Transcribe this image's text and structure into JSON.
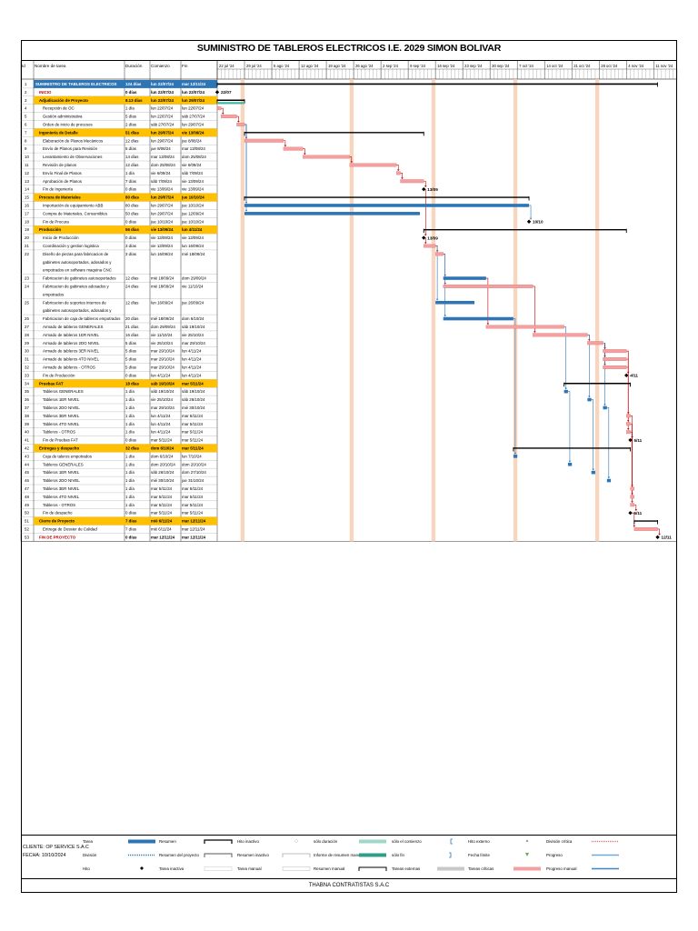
{
  "title": "SUMINISTRO DE TABLEROS ELECTRICOS I.E. 2029 SIMON BOLIVAR",
  "footer": "THABNA CONTRATISTAS S.A.C",
  "client": {
    "name": "CLIENTE: OP SERVICE S.A.C",
    "date": "FECHA: 10/10/2024"
  },
  "columns": [
    "Id",
    "Nombre de tarea",
    "Duración",
    "Comienzo",
    "Fin"
  ],
  "colors": {
    "summary_fill": "#ffc000",
    "project_fill": "#2e75b6",
    "manual_bar": "#f4a0a0",
    "manual_edge": "#e06666",
    "auto_bar": "#2e75b6",
    "link": "#c00000",
    "link_blue": "#2e75b6",
    "milestone": "#000000",
    "weekend_stripe": "#f8cbad"
  },
  "timescale": [
    "22 jul '24",
    "29 jul '24",
    "5 ago '24",
    "12 ago '24",
    "19 ago '24",
    "26 ago '24",
    "2 sep '24",
    "9 sep '24",
    "16 sep '24",
    "23 sep '24",
    "30 sep '24",
    "7 oct '24",
    "14 oct '24",
    "21 oct '24",
    "28 oct '24",
    "4 nov '24",
    "11 nov '24"
  ],
  "chart_data": {
    "type": "table",
    "title": "SUMINISTRO DE TABLEROS ELECTRICOS I.E. 2029 SIMON BOLIVAR",
    "x_range": [
      "2024-07-22",
      "2024-11-17"
    ],
    "tasks": [
      {
        "id": "1",
        "name": "SUMINISTRO DE TABLEROS ELECTRICOS",
        "dur": "124 días",
        "start": "lun 22/07/24",
        "end": "mar 12/11/24",
        "s": "2024-07-22",
        "e": "2024-11-12",
        "kind": "project",
        "indent": 0
      },
      {
        "id": "2",
        "name": "INICIO",
        "dur": "0 días",
        "start": "lun 22/07/24",
        "end": "lun 22/07/24",
        "s": "2024-07-22",
        "e": "2024-07-22",
        "kind": "milestone",
        "indent": 1,
        "label": "22/07",
        "red": true
      },
      {
        "id": "3",
        "name": "Adjudicación de Proyecto",
        "dur": "8.13 días",
        "start": "lun 22/07/24",
        "end": "lun 29/07/24",
        "s": "2024-07-22",
        "e": "2024-07-29",
        "kind": "summary",
        "indent": 1
      },
      {
        "id": "4",
        "name": "Recepción de OC",
        "dur": "1 día",
        "start": "lun 22/07/24",
        "end": "lun 22/07/24",
        "s": "2024-07-22",
        "e": "2024-07-23",
        "kind": "manual",
        "indent": 2
      },
      {
        "id": "5",
        "name": "Gestión administrativa",
        "dur": "5 días",
        "start": "lun 22/07/24",
        "end": "sáb 27/07/24",
        "s": "2024-07-23",
        "e": "2024-07-27",
        "kind": "manual",
        "indent": 2
      },
      {
        "id": "6",
        "name": "Orden de inicio de procesos",
        "dur": "2 días",
        "start": "sáb 27/07/24",
        "end": "lun 29/07/24",
        "s": "2024-07-27",
        "e": "2024-07-29",
        "kind": "manual",
        "indent": 2
      },
      {
        "id": "7",
        "name": "Ingeniería de Detalle",
        "dur": "51 días",
        "start": "lun 29/07/24",
        "end": "vie 13/09/24",
        "s": "2024-07-29",
        "e": "2024-09-13",
        "kind": "summary",
        "indent": 1
      },
      {
        "id": "8",
        "name": "Elaboración de Planos Mecánicos",
        "dur": "12 días",
        "start": "lun 29/07/24",
        "end": "jue 8/08/24",
        "s": "2024-07-29",
        "e": "2024-08-08",
        "kind": "manual",
        "indent": 2
      },
      {
        "id": "9",
        "name": "Envío de Planos para Revisión",
        "dur": "5 días",
        "start": "jue 8/08/24",
        "end": "mar 13/08/24",
        "s": "2024-08-08",
        "e": "2024-08-13",
        "kind": "manual",
        "indent": 2
      },
      {
        "id": "10",
        "name": "Levantamiento de Observaciones",
        "dur": "14 días",
        "start": "mar 13/08/24",
        "end": "dom 25/08/24",
        "s": "2024-08-13",
        "e": "2024-08-25",
        "kind": "manual",
        "indent": 2
      },
      {
        "id": "11",
        "name": "Revisión de planos",
        "dur": "12 días",
        "start": "dom 25/08/24",
        "end": "vie 6/09/24",
        "s": "2024-08-25",
        "e": "2024-09-06",
        "kind": "manual",
        "indent": 2
      },
      {
        "id": "12",
        "name": "Envío Final de Planos",
        "dur": "1 día",
        "start": "vie 6/09/24",
        "end": "sáb 7/09/24",
        "s": "2024-09-06",
        "e": "2024-09-07",
        "kind": "manual",
        "indent": 2
      },
      {
        "id": "13",
        "name": "Aprobación de Planos",
        "dur": "7 días",
        "start": "sáb 7/09/24",
        "end": "vie 13/09/24",
        "s": "2024-09-07",
        "e": "2024-09-13",
        "kind": "manual",
        "indent": 2
      },
      {
        "id": "14",
        "name": "Fin de Ingeniería",
        "dur": "0 días",
        "start": "vie 13/09/24",
        "end": "vie 13/09/24",
        "s": "2024-09-13",
        "e": "2024-09-13",
        "kind": "milestone",
        "indent": 2,
        "label": "13/09"
      },
      {
        "id": "15",
        "name": "Procura de Materiales",
        "dur": "80 días",
        "start": "lun 29/07/24",
        "end": "jue 10/10/24",
        "s": "2024-07-29",
        "e": "2024-10-10",
        "kind": "summary",
        "indent": 1
      },
      {
        "id": "16",
        "name": "Importación de equipamiento ABB",
        "dur": "80 días",
        "start": "lun 29/07/24",
        "end": "jue 10/10/24",
        "s": "2024-07-29",
        "e": "2024-10-10",
        "kind": "auto",
        "indent": 2
      },
      {
        "id": "17",
        "name": "Compra de Materiales, Consumibles",
        "dur": "50 días",
        "start": "lun 29/07/24",
        "end": "jue 12/09/24",
        "s": "2024-07-29",
        "e": "2024-09-12",
        "kind": "auto",
        "indent": 2
      },
      {
        "id": "18",
        "name": "Fin de Procura",
        "dur": "0 días",
        "start": "jue 10/10/24",
        "end": "jue 10/10/24",
        "s": "2024-10-10",
        "e": "2024-10-10",
        "kind": "milestone",
        "indent": 2,
        "label": "10/10"
      },
      {
        "id": "19",
        "name": "Producción",
        "dur": "56 días",
        "start": "vie 13/09/24",
        "end": "lun 4/11/24",
        "s": "2024-09-13",
        "e": "2024-11-04",
        "kind": "summary",
        "indent": 1
      },
      {
        "id": "20",
        "name": "Inicio de Producción",
        "dur": "0 días",
        "start": "vie 13/09/24",
        "end": "vie 13/09/24",
        "s": "2024-09-13",
        "e": "2024-09-13",
        "kind": "milestone",
        "indent": 2,
        "label": "13/09"
      },
      {
        "id": "21",
        "name": "Coordinación y gestion logistica",
        "dur": "3 días",
        "start": "vie 13/09/24",
        "end": "lun 16/09/24",
        "s": "2024-09-13",
        "e": "2024-09-16",
        "kind": "manual",
        "indent": 2
      },
      {
        "id": "22",
        "name": "Diseño de piezas para fabricacion de gabinetes autosoportados, adosados y empotrados en software maquina CNC",
        "dur": "3 días",
        "start": "lun 16/09/24",
        "end": "mié 18/09/24",
        "s": "2024-09-16",
        "e": "2024-09-18",
        "kind": "manual",
        "indent": 2,
        "lines": 3
      },
      {
        "id": "23",
        "name": "Fabricacion de gabinetes autosoportados",
        "dur": "12 días",
        "start": "mié 18/09/24",
        "end": "dom 29/09/24",
        "s": "2024-09-18",
        "e": "2024-09-29",
        "kind": "auto",
        "indent": 2
      },
      {
        "id": "24",
        "name": "Fabricacion de gabinetes adosados y empotrados",
        "dur": "24 días",
        "start": "mié 18/09/24",
        "end": "vie 11/10/24",
        "s": "2024-09-18",
        "e": "2024-10-11",
        "kind": "manual",
        "indent": 2,
        "lines": 2
      },
      {
        "id": "25",
        "name": "Fabricacion de soportes internos de gabinetes autosoportados, adosados y",
        "dur": "12 días",
        "start": "lun 16/09/24",
        "end": "jue 26/09/24",
        "s": "2024-09-16",
        "e": "2024-09-26",
        "kind": "auto",
        "indent": 2,
        "lines": 2
      },
      {
        "id": "26",
        "name": "Fabricacion de caja de tableros empotrados",
        "dur": "20 días",
        "start": "mié 18/09/24",
        "end": "dom 6/10/24",
        "s": "2024-09-18",
        "e": "2024-10-06",
        "kind": "auto",
        "indent": 2
      },
      {
        "id": "27",
        "name": "Armado de tableros GENERALES",
        "dur": "21 días",
        "start": "dom 29/09/24",
        "end": "sáb 19/10/24",
        "s": "2024-09-29",
        "e": "2024-10-19",
        "kind": "manual",
        "indent": 2
      },
      {
        "id": "28",
        "name": "Armado de tableros 1ER NIVEL",
        "dur": "16 días",
        "start": "vie 11/10/24",
        "end": "vie 25/10/24",
        "s": "2024-10-11",
        "e": "2024-10-25",
        "kind": "manual",
        "indent": 2
      },
      {
        "id": "29",
        "name": "Armado de tableros 2DO NIVEL",
        "dur": "5 días",
        "start": "vie 25/10/24",
        "end": "mar 29/10/24",
        "s": "2024-10-25",
        "e": "2024-10-29",
        "kind": "manual",
        "indent": 2
      },
      {
        "id": "30",
        "name": "Armado de tableros 3ER NIVEL",
        "dur": "5 días",
        "start": "mar 29/10/24",
        "end": "lun 4/11/24",
        "s": "2024-10-29",
        "e": "2024-11-04",
        "kind": "manual",
        "indent": 2
      },
      {
        "id": "31",
        "name": "Armado de tableros 4TO NIVEL",
        "dur": "5 días",
        "start": "mar 29/10/24",
        "end": "lun 4/11/24",
        "s": "2024-10-29",
        "e": "2024-11-04",
        "kind": "manual",
        "indent": 2
      },
      {
        "id": "32",
        "name": "Armado de tableros - OTROS",
        "dur": "5 días",
        "start": "mar 29/10/24",
        "end": "lun 4/11/24",
        "s": "2024-10-29",
        "e": "2024-11-04",
        "kind": "manual",
        "indent": 2
      },
      {
        "id": "33",
        "name": "Fin de Producción",
        "dur": "0 días",
        "start": "lun 4/11/24",
        "end": "lun 4/11/24",
        "s": "2024-11-04",
        "e": "2024-11-04",
        "kind": "milestone",
        "indent": 2,
        "label": "4/11"
      },
      {
        "id": "34",
        "name": "Pruebas FAT",
        "dur": "18 días",
        "start": "sáb 19/10/24",
        "end": "mar 5/11/24",
        "s": "2024-10-19",
        "e": "2024-11-05",
        "kind": "summary",
        "indent": 1
      },
      {
        "id": "35",
        "name": "Tableros GENERALES",
        "dur": "1 día",
        "start": "sáb 19/10/24",
        "end": "sáb 19/10/24",
        "s": "2024-10-19",
        "e": "2024-10-20",
        "kind": "auto",
        "indent": 2
      },
      {
        "id": "36",
        "name": "Tableros 1ER NIVEL",
        "dur": "1 día",
        "start": "vie 25/10/24",
        "end": "sáb 26/10/24",
        "s": "2024-10-25",
        "e": "2024-10-26",
        "kind": "auto",
        "indent": 2
      },
      {
        "id": "37",
        "name": "Tableros 2DO NIVEL",
        "dur": "1 día",
        "start": "mar 29/10/24",
        "end": "mié 30/10/24",
        "s": "2024-10-29",
        "e": "2024-10-30",
        "kind": "auto",
        "indent": 2
      },
      {
        "id": "38",
        "name": "Tableros 3ER NIVEL",
        "dur": "1 día",
        "start": "lun 4/11/24",
        "end": "mar 5/11/24",
        "s": "2024-11-04",
        "e": "2024-11-05",
        "kind": "manual",
        "indent": 2
      },
      {
        "id": "39",
        "name": "Tableros 4TO NIVEL",
        "dur": "1 día",
        "start": "lun 4/11/24",
        "end": "mar 5/11/24",
        "s": "2024-11-04",
        "e": "2024-11-05",
        "kind": "manual",
        "indent": 2
      },
      {
        "id": "40",
        "name": "Tableros - OTROS",
        "dur": "1 día",
        "start": "lun 4/11/24",
        "end": "mar 5/11/24",
        "s": "2024-11-04",
        "e": "2024-11-05",
        "kind": "manual",
        "indent": 2
      },
      {
        "id": "41",
        "name": "Fin de Pruebas FAT",
        "dur": "0 días",
        "start": "mar 5/11/24",
        "end": "mar 5/11/24",
        "s": "2024-11-05",
        "e": "2024-11-05",
        "kind": "milestone",
        "indent": 2,
        "label": "5/11"
      },
      {
        "id": "42",
        "name": "Entregas y despacho",
        "dur": "32 días",
        "start": "dom 6/10/24",
        "end": "mar 5/11/24",
        "s": "2024-10-06",
        "e": "2024-11-05",
        "kind": "summary",
        "indent": 1
      },
      {
        "id": "43",
        "name": "Caja de taleros empotrados",
        "dur": "1 día",
        "start": "dom 6/10/24",
        "end": "lun 7/10/24",
        "s": "2024-10-06",
        "e": "2024-10-07",
        "kind": "auto",
        "indent": 2
      },
      {
        "id": "44",
        "name": "Tableros GENERALES",
        "dur": "1 día",
        "start": "dom 20/10/24",
        "end": "dom 20/10/24",
        "s": "2024-10-20",
        "e": "2024-10-21",
        "kind": "auto",
        "indent": 2
      },
      {
        "id": "45",
        "name": "Tableros 1ER NIVEL",
        "dur": "1 día",
        "start": "sáb 26/10/24",
        "end": "dom 27/10/24",
        "s": "2024-10-26",
        "e": "2024-10-27",
        "kind": "auto",
        "indent": 2
      },
      {
        "id": "46",
        "name": "Tableros 2DO NIVEL",
        "dur": "1 día",
        "start": "mié 30/10/24",
        "end": "jue 31/10/24",
        "s": "2024-10-30",
        "e": "2024-10-31",
        "kind": "auto",
        "indent": 2
      },
      {
        "id": "47",
        "name": "Tableros 3ER NIVEL",
        "dur": "1 día",
        "start": "mar 5/11/24",
        "end": "mar 5/11/24",
        "s": "2024-11-05",
        "e": "2024-11-06",
        "kind": "manual",
        "indent": 2
      },
      {
        "id": "48",
        "name": "Tableros 4TO NIVEL",
        "dur": "1 día",
        "start": "mar 5/11/24",
        "end": "mar 5/11/24",
        "s": "2024-11-05",
        "e": "2024-11-06",
        "kind": "manual",
        "indent": 2
      },
      {
        "id": "49",
        "name": "Tableros - OTROS",
        "dur": "1 día",
        "start": "mar 5/11/24",
        "end": "mar 5/11/24",
        "s": "2024-11-05",
        "e": "2024-11-06",
        "kind": "manual",
        "indent": 2
      },
      {
        "id": "50",
        "name": "Fin de despacho",
        "dur": "0 días",
        "start": "mar 5/11/24",
        "end": "mar 5/11/24",
        "s": "2024-11-05",
        "e": "2024-11-05",
        "kind": "milestone",
        "indent": 2,
        "label": "5/11"
      },
      {
        "id": "51",
        "name": "Cierre de Proyecto",
        "dur": "7 días",
        "start": "mié 6/11/24",
        "end": "mar 12/11/24",
        "s": "2024-11-06",
        "e": "2024-11-12",
        "kind": "summary",
        "indent": 1
      },
      {
        "id": "52",
        "name": "Entrega de Dossier de Calidad",
        "dur": "7 días",
        "start": "mié 6/11/24",
        "end": "mar 12/11/24",
        "s": "2024-11-06",
        "e": "2024-11-12",
        "kind": "manual",
        "indent": 2
      },
      {
        "id": "53",
        "name": "FIN DE PROYECTO",
        "dur": "0 días",
        "start": "mar 12/11/24",
        "end": "mar 12/11/24",
        "s": "2024-11-12",
        "e": "2024-11-12",
        "kind": "milestone",
        "indent": 1,
        "label": "12/11",
        "red": true
      }
    ]
  },
  "legend": [
    {
      "label": "Tarea",
      "sym": "task"
    },
    {
      "label": "División",
      "sym": "split"
    },
    {
      "label": "Hito",
      "sym": "milestone"
    },
    {
      "label": "Resumen",
      "sym": "summary"
    },
    {
      "label": "Resumen del proyecto",
      "sym": "project"
    },
    {
      "label": "Tarea inactiva",
      "sym": "inactive-task"
    },
    {
      "label": "Hito inactivo",
      "sym": "inactive-milestone"
    },
    {
      "label": "Resumen inactivo",
      "sym": "inactive-summary"
    },
    {
      "label": "Tarea manual",
      "sym": "manual-task"
    },
    {
      "label": "sólo duración",
      "sym": "duration-only"
    },
    {
      "label": "Informe de resumen manual",
      "sym": "manual-summary-rollup"
    },
    {
      "label": "Resumen manual",
      "sym": "manual-summary"
    },
    {
      "label": "sólo el comienzo",
      "sym": "start-only"
    },
    {
      "label": "sólo fin",
      "sym": "finish-only"
    },
    {
      "label": "Tareas externas",
      "sym": "external-tasks"
    },
    {
      "label": "Hito externo",
      "sym": "external-milestone"
    },
    {
      "label": "Fecha límite",
      "sym": "deadline"
    },
    {
      "label": "Tareas críticas",
      "sym": "critical-tasks"
    },
    {
      "label": "División crítica",
      "sym": "critical-split"
    },
    {
      "label": "Progreso",
      "sym": "progress"
    },
    {
      "label": "Progreso manual",
      "sym": "manual-progress"
    }
  ]
}
